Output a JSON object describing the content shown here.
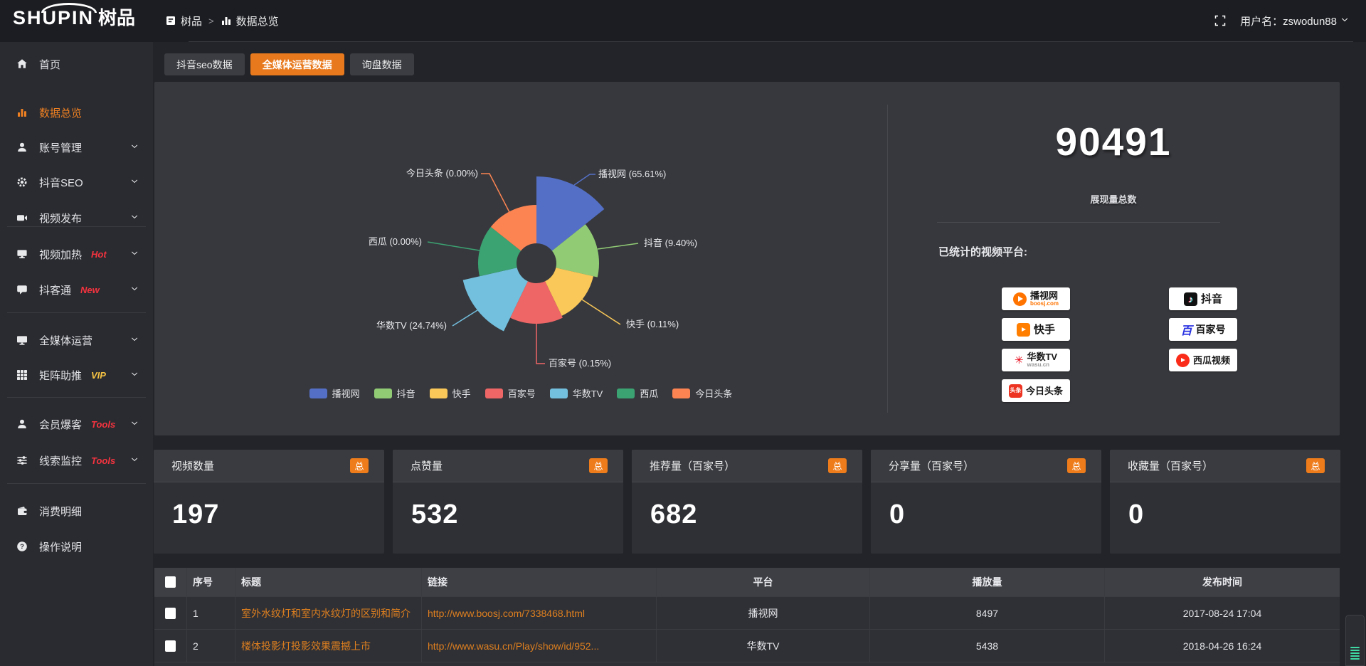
{
  "brand": {
    "name_latin": "SHUPIN",
    "name_cn": "树品"
  },
  "topbar": {
    "breadcrumb": {
      "root": "树品",
      "separator": ">",
      "current": "数据总览"
    },
    "username_label": "用户名：zswodun88"
  },
  "sidebar": {
    "items": [
      {
        "label": "首页"
      },
      {
        "label": "数据总览"
      },
      {
        "label": "账号管理"
      },
      {
        "label": "抖音SEO"
      },
      {
        "label": "视频发布"
      },
      {
        "label": "视频加热",
        "tag": "Hot"
      },
      {
        "label": "抖客通",
        "tag": "New"
      },
      {
        "label": "全媒体运营"
      },
      {
        "label": "矩阵助推",
        "tag": "VIP"
      },
      {
        "label": "会员爆客",
        "tag": "Tools"
      },
      {
        "label": "线索监控",
        "tag": "Tools"
      },
      {
        "label": "消费明细"
      },
      {
        "label": "操作说明"
      }
    ]
  },
  "tabs": [
    {
      "label": "抖音seo数据",
      "active": false
    },
    {
      "label": "全媒体运营数据",
      "active": true
    },
    {
      "label": "询盘数据",
      "active": false
    }
  ],
  "chart_data": {
    "type": "pie",
    "variant": "nightingale-rose",
    "legend_position": "bottom",
    "items": [
      {
        "name": "播视网",
        "percent": 65.61,
        "color": "#5470c6"
      },
      {
        "name": "抖音",
        "percent": 9.4,
        "color": "#91cc75"
      },
      {
        "name": "快手",
        "percent": 0.11,
        "color": "#fac858"
      },
      {
        "name": "百家号",
        "percent": 0.15,
        "color": "#ee6666"
      },
      {
        "name": "华数TV",
        "percent": 24.74,
        "color": "#73c0de"
      },
      {
        "name": "西瓜",
        "percent": 0.0,
        "color": "#3ba272"
      },
      {
        "name": "今日头条",
        "percent": 0.0,
        "color": "#fc8452"
      }
    ],
    "legend": [
      "播视网",
      "抖音",
      "快手",
      "百家号",
      "华数TV",
      "西瓜",
      "今日头条"
    ]
  },
  "summary": {
    "total_value": "90491",
    "total_label": "展现量总数",
    "platforms_title": "已统计的视频平台:",
    "platforms": [
      {
        "name": "播视网",
        "sub": "boosj.com"
      },
      {
        "name": "抖音"
      },
      {
        "name": "快手"
      },
      {
        "name": "百家号"
      },
      {
        "name": "华数TV",
        "sub": "wasu.cn"
      },
      {
        "name": "西瓜视频"
      },
      {
        "name": "今日头条"
      }
    ]
  },
  "stat_cards": [
    {
      "title": "视频数量",
      "badge": "总",
      "value": "197"
    },
    {
      "title": "点赞量",
      "badge": "总",
      "value": "532"
    },
    {
      "title": "推荐量（百家号）",
      "badge": "总",
      "value": "682"
    },
    {
      "title": "分享量（百家号）",
      "badge": "总",
      "value": "0"
    },
    {
      "title": "收藏量（百家号）",
      "badge": "总",
      "value": "0"
    }
  ],
  "table": {
    "headers": [
      "序号",
      "标题",
      "链接",
      "平台",
      "播放量",
      "发布时间"
    ],
    "rows": [
      {
        "num": "1",
        "title": "室外水纹灯和室内水纹灯的区别和简介",
        "link": "http://www.boosj.com/7338468.html",
        "platform": "播视网",
        "plays": "8497",
        "time": "2017-08-24 17:04"
      },
      {
        "num": "2",
        "title": "楼体投影灯投影效果震撼上市",
        "link": "http://www.wasu.cn/Play/show/id/952...",
        "platform": "华数TV",
        "plays": "5438",
        "time": "2018-04-26 16:24"
      }
    ]
  },
  "colors": {
    "accent_orange": "#e8791d",
    "badge_orange": "#ef7c1a",
    "active_text": "#ef8022"
  }
}
